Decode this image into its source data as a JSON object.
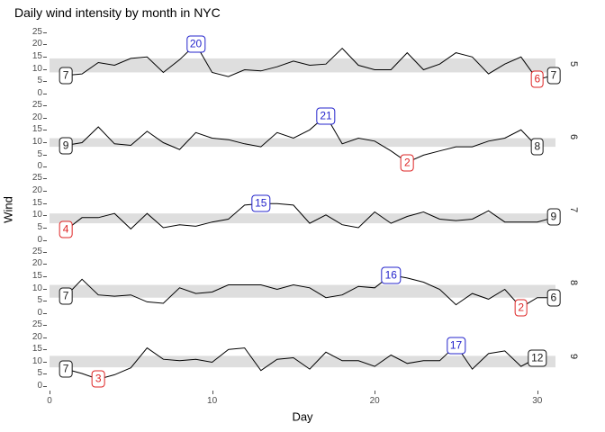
{
  "title": "Daily wind intensity by month in NYC",
  "chart_data": {
    "type": "line",
    "title": "Daily wind intensity by month in NYC",
    "xlabel": "Day",
    "ylabel": "Wind",
    "x_ticks": [
      0,
      10,
      20,
      30
    ],
    "y_ticks": [
      0,
      5,
      10,
      15,
      20,
      25
    ],
    "xlim": [
      0,
      31
    ],
    "ylim": [
      0,
      25
    ],
    "facet_variable": "Month",
    "legend": "none",
    "grid": "off",
    "facets": [
      {
        "strip": "5",
        "values": [
          7.4,
          8.0,
          12.6,
          11.5,
          14.3,
          14.9,
          8.6,
          13.8,
          20.1,
          8.6,
          6.9,
          9.7,
          9.2,
          10.9,
          13.2,
          11.5,
          12.0,
          18.4,
          11.5,
          9.7,
          9.7,
          16.6,
          9.7,
          12.0,
          16.6,
          14.9,
          8.0,
          12.0,
          14.9,
          5.7,
          7.4
        ],
        "band": {
          "low": 8.6,
          "high": 14.3
        },
        "labels": [
          {
            "day": 1,
            "value": 7.4,
            "text": "7",
            "type": "first"
          },
          {
            "day": 9,
            "value": 20.1,
            "text": "20",
            "type": "max"
          },
          {
            "day": 30,
            "value": 5.7,
            "text": "6",
            "type": "min"
          },
          {
            "day": 31,
            "value": 7.4,
            "text": "7",
            "type": "last"
          }
        ]
      },
      {
        "strip": "6",
        "values": [
          8.6,
          9.7,
          16.1,
          9.2,
          8.6,
          14.3,
          9.7,
          6.9,
          13.8,
          11.5,
          10.9,
          9.2,
          8.0,
          13.8,
          11.5,
          14.9,
          20.7,
          9.2,
          11.5,
          10.3,
          6.3,
          1.7,
          4.6,
          6.3,
          8.0,
          8.0,
          10.3,
          11.5,
          14.9,
          8.0
        ],
        "band": {
          "low": 8.0,
          "high": 11.5
        },
        "labels": [
          {
            "day": 1,
            "value": 8.6,
            "text": "9",
            "type": "first"
          },
          {
            "day": 17,
            "value": 20.7,
            "text": "21",
            "type": "max"
          },
          {
            "day": 22,
            "value": 1.7,
            "text": "2",
            "type": "min"
          },
          {
            "day": 30,
            "value": 8.0,
            "text": "8",
            "type": "last"
          }
        ]
      },
      {
        "strip": "7",
        "values": [
          4.1,
          9.2,
          9.2,
          10.9,
          4.6,
          10.9,
          5.1,
          6.3,
          5.7,
          7.4,
          8.6,
          14.3,
          14.9,
          14.9,
          14.3,
          6.9,
          10.3,
          6.3,
          5.1,
          11.5,
          6.9,
          9.7,
          11.5,
          8.6,
          8.0,
          8.6,
          12.0,
          7.4,
          7.4,
          7.4,
          9.2
        ],
        "band": {
          "low": 6.9,
          "high": 10.9
        },
        "labels": [
          {
            "day": 1,
            "value": 4.1,
            "text": "4",
            "type": "min"
          },
          {
            "day": 13,
            "value": 14.9,
            "text": "15",
            "type": "max"
          },
          {
            "day": 31,
            "value": 9.2,
            "text": "9",
            "type": "last"
          }
        ]
      },
      {
        "strip": "8",
        "values": [
          6.9,
          13.8,
          7.4,
          6.9,
          7.4,
          4.6,
          4.0,
          10.3,
          8.0,
          8.6,
          11.5,
          11.5,
          11.5,
          9.7,
          11.5,
          10.3,
          6.3,
          7.4,
          10.9,
          10.3,
          15.5,
          14.3,
          12.6,
          9.7,
          3.4,
          8.0,
          5.7,
          9.7,
          2.3,
          6.3,
          6.3
        ],
        "band": {
          "low": 6.3,
          "high": 11.5
        },
        "labels": [
          {
            "day": 1,
            "value": 6.9,
            "text": "7",
            "type": "first"
          },
          {
            "day": 21,
            "value": 15.5,
            "text": "16",
            "type": "max"
          },
          {
            "day": 29,
            "value": 2.3,
            "text": "2",
            "type": "min"
          },
          {
            "day": 31,
            "value": 6.3,
            "text": "6",
            "type": "last"
          }
        ]
      },
      {
        "strip": "9",
        "values": [
          6.9,
          5.1,
          2.8,
          4.6,
          7.4,
          15.5,
          10.9,
          10.3,
          10.9,
          9.7,
          14.9,
          15.5,
          6.3,
          10.9,
          11.5,
          6.9,
          13.8,
          10.3,
          10.3,
          8.0,
          12.6,
          9.2,
          10.3,
          10.3,
          16.6,
          6.9,
          13.2,
          14.3,
          8.0,
          11.5
        ],
        "band": {
          "low": 7.6,
          "high": 12.3
        },
        "labels": [
          {
            "day": 1,
            "value": 6.9,
            "text": "7",
            "type": "first"
          },
          {
            "day": 3,
            "value": 2.8,
            "text": "3",
            "type": "min"
          },
          {
            "day": 25,
            "value": 16.6,
            "text": "17",
            "type": "max"
          },
          {
            "day": 30,
            "value": 11.5,
            "text": "12",
            "type": "last"
          }
        ]
      }
    ]
  },
  "colors": {
    "line": "#000000",
    "band": "#dedede",
    "axis_text": "#4d4d4d",
    "title_text": "#000000",
    "label_max": "#2525cc",
    "label_min": "#de2626",
    "label_endpoint": "#1a1a1a"
  }
}
